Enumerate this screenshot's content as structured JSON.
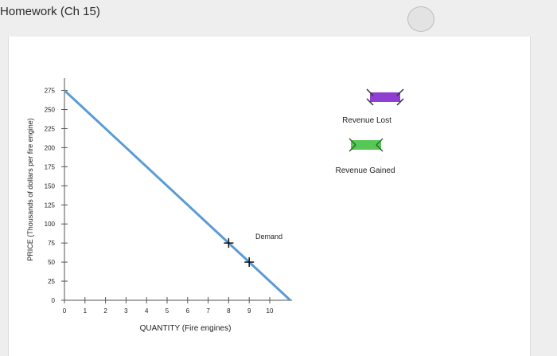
{
  "header": {
    "title": "Homework (Ch 15)"
  },
  "legend": {
    "revenue_lost": {
      "label": "Revenue Lost",
      "color": "#8e3fd1"
    },
    "revenue_gained": {
      "label": "Revenue Gained",
      "color": "#55c855"
    }
  },
  "chart_data": {
    "type": "line",
    "xlabel": "QUANTITY (Fire engines)",
    "ylabel": "PRICE (Thousands of dollars per fire engine)",
    "xlim": [
      0,
      10
    ],
    "ylim": [
      0,
      275
    ],
    "x_ticks": [
      0,
      1,
      2,
      3,
      4,
      5,
      6,
      7,
      8,
      9,
      10
    ],
    "y_ticks": [
      0,
      25,
      50,
      75,
      100,
      125,
      150,
      175,
      200,
      225,
      250,
      275
    ],
    "series": [
      {
        "name": "Demand",
        "color": "#5b9bd5",
        "points": [
          [
            0,
            275
          ],
          [
            11,
            0
          ]
        ]
      }
    ],
    "markers": [
      [
        8,
        75
      ],
      [
        9,
        50
      ]
    ]
  }
}
